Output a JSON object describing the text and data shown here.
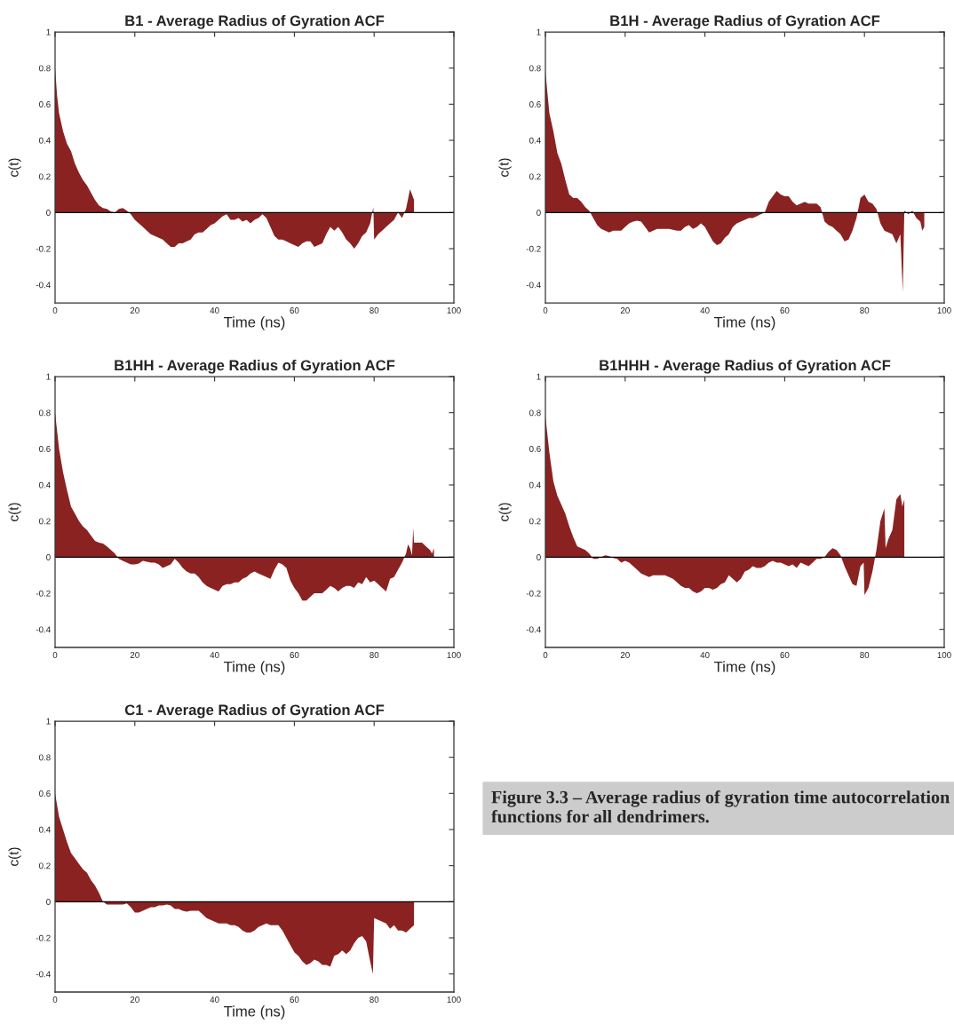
{
  "chart_data": [
    {
      "type": "area",
      "title": "B1 - Average Radius of Gyration ACF",
      "xlabel": "Time (ns)",
      "ylabel": "c(t)",
      "xlim": [
        0,
        100
      ],
      "ylim": [
        -0.5,
        1
      ],
      "xticks": [
        0,
        20,
        40,
        60,
        80,
        100
      ],
      "yticks": [
        -0.4,
        -0.2,
        0,
        0.2,
        0.4,
        0.6,
        0.8,
        1
      ],
      "grid": false,
      "ref_lines": [
        {
          "axis": "y",
          "value": 0,
          "color": "#000000"
        }
      ],
      "x": [
        0,
        0.5,
        1,
        2,
        3,
        4,
        5,
        6,
        7,
        8,
        9,
        10,
        11,
        12,
        13,
        14,
        15,
        16,
        17,
        18,
        19,
        20,
        21,
        22,
        23,
        24,
        25,
        26,
        27,
        28,
        29,
        30,
        31,
        32,
        33,
        34,
        35,
        36,
        37,
        38,
        39,
        40,
        41,
        42,
        43,
        44,
        45,
        46,
        47,
        48,
        49,
        50,
        51,
        52,
        53,
        54,
        55,
        56,
        57,
        58,
        59,
        60,
        61,
        62,
        63,
        64,
        65,
        66,
        67,
        68,
        69,
        70,
        71,
        72,
        73,
        74,
        75,
        76,
        77,
        78,
        79,
        79.8,
        80,
        81,
        82,
        83,
        84,
        85,
        86,
        87,
        88,
        89,
        89.5,
        90
      ],
      "series": [
        {
          "color": "#8b2222",
          "values": [
            0.8,
            0.65,
            0.55,
            0.45,
            0.38,
            0.34,
            0.27,
            0.22,
            0.18,
            0.15,
            0.11,
            0.07,
            0.04,
            0.025,
            0.02,
            0.005,
            0.0,
            0.02,
            0.025,
            0.01,
            -0.01,
            -0.04,
            -0.06,
            -0.08,
            -0.1,
            -0.12,
            -0.13,
            -0.14,
            -0.15,
            -0.17,
            -0.19,
            -0.19,
            -0.17,
            -0.17,
            -0.16,
            -0.15,
            -0.12,
            -0.11,
            -0.11,
            -0.09,
            -0.07,
            -0.06,
            -0.04,
            -0.02,
            -0.01,
            -0.04,
            -0.04,
            -0.03,
            -0.05,
            -0.04,
            -0.06,
            -0.04,
            -0.03,
            -0.01,
            -0.03,
            -0.08,
            -0.13,
            -0.15,
            -0.15,
            -0.16,
            -0.17,
            -0.18,
            -0.19,
            -0.17,
            -0.16,
            -0.16,
            -0.19,
            -0.18,
            -0.17,
            -0.12,
            -0.08,
            -0.1,
            -0.08,
            -0.11,
            -0.15,
            -0.17,
            -0.2,
            -0.17,
            -0.13,
            -0.11,
            -0.06,
            0.03,
            -0.15,
            -0.12,
            -0.1,
            -0.08,
            -0.06,
            -0.04,
            0.0,
            -0.03,
            0.02,
            0.13,
            0.1,
            0.07
          ]
        }
      ]
    },
    {
      "type": "area",
      "title": "B1H - Average Radius of Gyration ACF",
      "xlabel": "Time (ns)",
      "ylabel": "c(t)",
      "xlim": [
        0,
        100
      ],
      "ylim": [
        -0.5,
        1
      ],
      "xticks": [
        0,
        20,
        40,
        60,
        80,
        100
      ],
      "yticks": [
        -0.4,
        -0.2,
        0,
        0.2,
        0.4,
        0.6,
        0.8,
        1
      ],
      "grid": false,
      "ref_lines": [
        {
          "axis": "y",
          "value": 0,
          "color": "#000000"
        }
      ],
      "x": [
        0,
        1,
        2,
        3,
        4,
        5,
        6,
        7,
        8,
        9,
        10,
        11,
        12,
        13,
        14,
        15,
        16,
        17,
        18,
        19,
        20,
        21,
        22,
        23,
        24,
        25,
        26,
        27,
        28,
        29,
        30,
        31,
        32,
        33,
        34,
        35,
        36,
        37,
        38,
        39,
        40,
        41,
        42,
        43,
        44,
        45,
        46,
        47,
        48,
        49,
        50,
        51,
        52,
        53,
        54,
        55,
        56,
        57,
        58,
        59,
        60,
        61,
        62,
        63,
        64,
        65,
        66,
        67,
        68,
        69,
        70,
        71,
        72,
        73,
        74,
        75,
        76,
        77,
        78,
        79,
        80,
        81,
        82,
        83,
        84,
        85,
        86,
        87,
        88,
        89,
        89.6,
        90,
        91,
        92,
        93,
        94,
        94.5,
        95
      ],
      "series": [
        {
          "color": "#8b2222",
          "values": [
            0.78,
            0.55,
            0.45,
            0.33,
            0.27,
            0.18,
            0.1,
            0.08,
            0.08,
            0.06,
            0.03,
            0.01,
            -0.03,
            -0.07,
            -0.09,
            -0.1,
            -0.11,
            -0.1,
            -0.1,
            -0.1,
            -0.08,
            -0.06,
            -0.05,
            -0.045,
            -0.05,
            -0.08,
            -0.11,
            -0.1,
            -0.09,
            -0.09,
            -0.09,
            -0.09,
            -0.095,
            -0.1,
            -0.1,
            -0.08,
            -0.07,
            -0.09,
            -0.08,
            -0.06,
            -0.08,
            -0.12,
            -0.16,
            -0.18,
            -0.17,
            -0.14,
            -0.12,
            -0.08,
            -0.06,
            -0.05,
            -0.04,
            -0.03,
            -0.03,
            -0.02,
            -0.01,
            0.0,
            0.06,
            0.09,
            0.12,
            0.1,
            0.09,
            0.09,
            0.06,
            0.04,
            0.05,
            0.06,
            0.05,
            0.05,
            0.05,
            0.03,
            -0.05,
            -0.07,
            -0.08,
            -0.1,
            -0.12,
            -0.16,
            -0.15,
            -0.1,
            -0.03,
            0.08,
            0.1,
            0.06,
            0.05,
            0.02,
            -0.06,
            -0.1,
            -0.11,
            -0.12,
            -0.17,
            -0.12,
            -0.44,
            0.01,
            -0.01,
            0.01,
            -0.03,
            -0.05,
            -0.1,
            -0.08
          ]
        }
      ]
    },
    {
      "type": "area",
      "title": "B1HH - Average Radius of Gyration ACF",
      "xlabel": "Time (ns)",
      "ylabel": "c(t)",
      "xlim": [
        0,
        100
      ],
      "ylim": [
        -0.5,
        1
      ],
      "xticks": [
        0,
        20,
        40,
        60,
        80,
        100
      ],
      "yticks": [
        -0.4,
        -0.2,
        0,
        0.2,
        0.4,
        0.6,
        0.8,
        1
      ],
      "grid": false,
      "ref_lines": [
        {
          "axis": "y",
          "value": 0,
          "color": "#000000"
        }
      ],
      "x": [
        0,
        1,
        2,
        3,
        4,
        5,
        6,
        7,
        8,
        9,
        10,
        11,
        12,
        13,
        14,
        15,
        16,
        17,
        18,
        19,
        20,
        21,
        22,
        23,
        24,
        25,
        26,
        27,
        28,
        29,
        30,
        31,
        32,
        33,
        34,
        35,
        36,
        37,
        38,
        39,
        40,
        41,
        42,
        43,
        44,
        45,
        46,
        47,
        48,
        49,
        50,
        51,
        52,
        53,
        54,
        55,
        56,
        57,
        58,
        59,
        60,
        61,
        62,
        63,
        64,
        65,
        66,
        67,
        68,
        69,
        70,
        71,
        72,
        73,
        74,
        75,
        76,
        77,
        78,
        79,
        80,
        81,
        82,
        83,
        84,
        85,
        86,
        87,
        88,
        88.5,
        89,
        89.5,
        89.8,
        90,
        91,
        92,
        93,
        94,
        94.5,
        95
      ],
      "series": [
        {
          "color": "#8b2222",
          "values": [
            0.8,
            0.6,
            0.47,
            0.37,
            0.28,
            0.24,
            0.2,
            0.17,
            0.15,
            0.12,
            0.09,
            0.08,
            0.075,
            0.06,
            0.04,
            0.02,
            -0.01,
            -0.02,
            -0.03,
            -0.04,
            -0.04,
            -0.035,
            -0.02,
            -0.025,
            -0.03,
            -0.03,
            -0.04,
            -0.06,
            -0.05,
            -0.04,
            -0.01,
            -0.03,
            -0.06,
            -0.08,
            -0.09,
            -0.09,
            -0.11,
            -0.14,
            -0.16,
            -0.17,
            -0.18,
            -0.19,
            -0.16,
            -0.15,
            -0.15,
            -0.14,
            -0.14,
            -0.12,
            -0.11,
            -0.09,
            -0.08,
            -0.09,
            -0.1,
            -0.11,
            -0.12,
            -0.07,
            -0.03,
            -0.04,
            -0.06,
            -0.13,
            -0.17,
            -0.2,
            -0.24,
            -0.24,
            -0.22,
            -0.2,
            -0.2,
            -0.2,
            -0.18,
            -0.16,
            -0.17,
            -0.19,
            -0.17,
            -0.16,
            -0.16,
            -0.17,
            -0.14,
            -0.15,
            -0.11,
            -0.14,
            -0.13,
            -0.15,
            -0.17,
            -0.19,
            -0.12,
            -0.11,
            -0.07,
            -0.03,
            0.02,
            0.07,
            0.05,
            0.01,
            0.16,
            0.08,
            0.08,
            0.08,
            0.06,
            0.04,
            0.02,
            0.05
          ]
        }
      ]
    },
    {
      "type": "area",
      "title": "B1HHH - Average Radius of Gyration ACF",
      "xlabel": "Time (ns)",
      "ylabel": "c(t)",
      "xlim": [
        0,
        100
      ],
      "ylim": [
        -0.5,
        1
      ],
      "xticks": [
        0,
        20,
        40,
        60,
        80,
        100
      ],
      "yticks": [
        -0.4,
        -0.2,
        0,
        0.2,
        0.4,
        0.6,
        0.8,
        1
      ],
      "grid": false,
      "ref_lines": [
        {
          "axis": "y",
          "value": 0,
          "color": "#000000"
        }
      ],
      "x": [
        0,
        1,
        2,
        3,
        4,
        5,
        6,
        7,
        8,
        9,
        10,
        11,
        12,
        13,
        14,
        15,
        16,
        17,
        18,
        19,
        20,
        21,
        22,
        23,
        24,
        25,
        26,
        27,
        28,
        29,
        30,
        31,
        32,
        33,
        34,
        35,
        36,
        37,
        38,
        39,
        40,
        41,
        42,
        43,
        44,
        45,
        46,
        47,
        48,
        49,
        50,
        51,
        52,
        53,
        54,
        55,
        56,
        57,
        58,
        59,
        60,
        61,
        62,
        63,
        64,
        65,
        66,
        67,
        68,
        69,
        70,
        71,
        72,
        73,
        74,
        75,
        76,
        77,
        78,
        79,
        79.8,
        80,
        81,
        82,
        83,
        84,
        85,
        85.3,
        86,
        87,
        88,
        89,
        89.5,
        90
      ],
      "series": [
        {
          "color": "#8b2222",
          "values": [
            0.78,
            0.58,
            0.42,
            0.34,
            0.29,
            0.24,
            0.17,
            0.11,
            0.06,
            0.05,
            0.04,
            0.02,
            -0.01,
            -0.01,
            0.0,
            0.01,
            0.005,
            -0.005,
            -0.01,
            -0.03,
            -0.02,
            -0.03,
            -0.05,
            -0.07,
            -0.09,
            -0.1,
            -0.11,
            -0.1,
            -0.1,
            -0.1,
            -0.1,
            -0.11,
            -0.12,
            -0.14,
            -0.16,
            -0.17,
            -0.17,
            -0.19,
            -0.2,
            -0.19,
            -0.17,
            -0.17,
            -0.18,
            -0.17,
            -0.15,
            -0.14,
            -0.1,
            -0.12,
            -0.14,
            -0.12,
            -0.08,
            -0.07,
            -0.05,
            -0.06,
            -0.06,
            -0.05,
            -0.03,
            -0.02,
            -0.03,
            -0.03,
            -0.04,
            -0.05,
            -0.04,
            -0.06,
            -0.03,
            -0.04,
            -0.05,
            -0.03,
            -0.01,
            -0.01,
            0.0,
            0.03,
            0.05,
            0.04,
            0.01,
            -0.05,
            -0.1,
            -0.15,
            -0.16,
            -0.05,
            -0.03,
            -0.21,
            -0.17,
            -0.08,
            0.04,
            0.2,
            0.27,
            0.05,
            0.1,
            0.15,
            0.32,
            0.35,
            0.28,
            0.32
          ]
        }
      ]
    },
    {
      "type": "area",
      "title": "C1 - Average Radius of Gyration ACF",
      "xlabel": "Time (ns)",
      "ylabel": "c(t)",
      "xlim": [
        0,
        100
      ],
      "ylim": [
        -0.5,
        1
      ],
      "xticks": [
        0,
        20,
        40,
        60,
        80,
        100
      ],
      "yticks": [
        -0.4,
        -0.2,
        0,
        0.2,
        0.4,
        0.6,
        0.8,
        1
      ],
      "grid": false,
      "ref_lines": [
        {
          "axis": "y",
          "value": 0,
          "color": "#000000"
        }
      ],
      "x": [
        0,
        1,
        2,
        3,
        4,
        5,
        6,
        7,
        8,
        9,
        10,
        11,
        12,
        13,
        14,
        15,
        16,
        17,
        18,
        19,
        20,
        21,
        22,
        23,
        24,
        25,
        26,
        27,
        28,
        29,
        30,
        31,
        32,
        33,
        34,
        35,
        36,
        37,
        38,
        39,
        40,
        41,
        42,
        43,
        44,
        45,
        46,
        47,
        48,
        49,
        50,
        51,
        52,
        53,
        54,
        55,
        56,
        57,
        58,
        59,
        60,
        61,
        62,
        63,
        64,
        65,
        66,
        67,
        68,
        69,
        70,
        71,
        72,
        73,
        74,
        75,
        76,
        77,
        78,
        79,
        79.7,
        80,
        81,
        82,
        83,
        84,
        85,
        86,
        87,
        88,
        89,
        90
      ],
      "series": [
        {
          "color": "#8b2222",
          "values": [
            0.6,
            0.47,
            0.4,
            0.33,
            0.27,
            0.24,
            0.21,
            0.18,
            0.16,
            0.12,
            0.09,
            0.05,
            0.0,
            -0.015,
            -0.015,
            -0.015,
            -0.015,
            -0.015,
            -0.01,
            -0.03,
            -0.06,
            -0.06,
            -0.05,
            -0.04,
            -0.03,
            -0.03,
            -0.02,
            -0.02,
            -0.015,
            -0.02,
            -0.04,
            -0.04,
            -0.05,
            -0.055,
            -0.05,
            -0.05,
            -0.05,
            -0.07,
            -0.09,
            -0.1,
            -0.11,
            -0.12,
            -0.12,
            -0.12,
            -0.13,
            -0.13,
            -0.14,
            -0.16,
            -0.17,
            -0.17,
            -0.16,
            -0.14,
            -0.13,
            -0.12,
            -0.13,
            -0.13,
            -0.13,
            -0.16,
            -0.2,
            -0.24,
            -0.28,
            -0.3,
            -0.33,
            -0.35,
            -0.34,
            -0.32,
            -0.33,
            -0.35,
            -0.35,
            -0.36,
            -0.3,
            -0.29,
            -0.27,
            -0.29,
            -0.27,
            -0.23,
            -0.2,
            -0.19,
            -0.22,
            -0.33,
            -0.4,
            -0.09,
            -0.1,
            -0.11,
            -0.12,
            -0.15,
            -0.13,
            -0.16,
            -0.16,
            -0.17,
            -0.15,
            -0.13
          ]
        }
      ]
    },
    {
      "type": "other",
      "annotations": [
        "Figure 3.3 – Average radius of gyration time autocorrelation functions for all dendrimers."
      ]
    }
  ]
}
